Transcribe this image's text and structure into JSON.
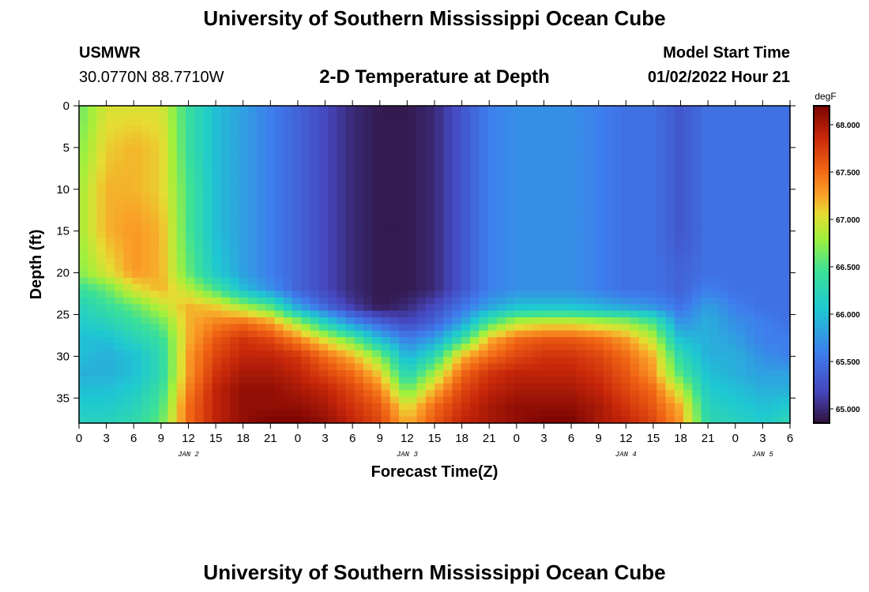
{
  "header": {
    "title": "University of Southern Mississippi Ocean Cube",
    "station": "USMWR",
    "coords": "30.0770N  88.7710W",
    "subtitle": "2-D Temperature at Depth",
    "model_label": "Model Start Time",
    "model_time": "01/02/2022 Hour 21"
  },
  "footer": {
    "title": "University of Southern Mississippi Ocean Cube"
  },
  "chart_data": {
    "type": "heatmap",
    "title": "2-D Temperature at Depth",
    "xlabel": "Forecast Time(Z)",
    "ylabel": "Depth (ft)",
    "x_tick_labels": [
      "0",
      "3",
      "6",
      "9",
      "12",
      "15",
      "18",
      "21",
      "0",
      "3",
      "6",
      "9",
      "12",
      "15",
      "18",
      "21",
      "0",
      "3",
      "6",
      "9",
      "12",
      "15",
      "18",
      "21",
      "0",
      "3",
      "6"
    ],
    "date_labels": [
      {
        "label": "JAN 2",
        "hours": 12
      },
      {
        "label": "JAN 3",
        "hours": 36
      },
      {
        "label": "JAN 4",
        "hours": 60
      },
      {
        "label": "JAN 5",
        "hours": 75
      }
    ],
    "xlim_hours": [
      0,
      78
    ],
    "y_ticks": [
      0,
      5,
      10,
      15,
      20,
      25,
      30,
      35
    ],
    "ylim": [
      0,
      38
    ],
    "y_inverted": true,
    "colorbar": {
      "unit": "degF",
      "min": 64.85,
      "max": 68.2,
      "tick_values": [
        65.0,
        65.5,
        66.0,
        66.5,
        67.0,
        67.5,
        68.0
      ],
      "tick_labels": [
        "65.000",
        "65.500",
        "66.000",
        "66.500",
        "67.000",
        "67.500",
        "68.000"
      ]
    },
    "time_hours": [
      0,
      3,
      6,
      9,
      12,
      15,
      18,
      21,
      24,
      27,
      30,
      33,
      36,
      39,
      42,
      45,
      48,
      51,
      54,
      57,
      60,
      63,
      66,
      69,
      72,
      75,
      78
    ],
    "depth_ft": [
      0,
      5,
      10,
      15,
      20,
      22,
      24,
      26,
      28,
      30,
      32,
      34,
      36,
      38
    ],
    "values": [
      [
        66.6,
        67.0,
        67.0,
        67.0,
        66.4,
        66.0,
        65.8,
        65.6,
        65.4,
        65.2,
        65.0,
        64.9,
        64.9,
        65.0,
        65.3,
        65.6,
        65.7,
        65.7,
        65.7,
        65.6,
        65.5,
        65.5,
        65.3,
        65.5,
        65.5,
        65.5,
        65.5
      ],
      [
        66.7,
        67.1,
        67.2,
        67.1,
        66.4,
        66.0,
        65.8,
        65.6,
        65.4,
        65.2,
        65.0,
        64.9,
        64.9,
        65.0,
        65.3,
        65.6,
        65.7,
        65.7,
        65.7,
        65.6,
        65.5,
        65.5,
        65.3,
        65.5,
        65.5,
        65.5,
        65.5
      ],
      [
        66.8,
        67.2,
        67.2,
        67.1,
        66.5,
        66.0,
        65.8,
        65.6,
        65.4,
        65.2,
        65.0,
        64.9,
        64.9,
        65.0,
        65.3,
        65.6,
        65.7,
        65.7,
        65.7,
        65.6,
        65.5,
        65.5,
        65.3,
        65.5,
        65.5,
        65.5,
        65.5
      ],
      [
        66.8,
        67.2,
        67.3,
        67.2,
        66.5,
        66.0,
        65.8,
        65.6,
        65.4,
        65.2,
        65.0,
        64.9,
        64.9,
        65.0,
        65.3,
        65.6,
        65.7,
        65.7,
        65.7,
        65.6,
        65.5,
        65.5,
        65.3,
        65.5,
        65.5,
        65.5,
        65.5
      ],
      [
        66.7,
        67.0,
        67.3,
        67.2,
        66.6,
        66.1,
        65.8,
        65.6,
        65.4,
        65.2,
        65.0,
        64.9,
        64.9,
        65.0,
        65.3,
        65.6,
        65.7,
        65.7,
        65.7,
        65.6,
        65.5,
        65.5,
        65.4,
        65.5,
        65.5,
        65.5,
        65.5
      ],
      [
        66.4,
        66.6,
        67.0,
        67.2,
        66.9,
        66.5,
        66.0,
        65.7,
        65.4,
        65.2,
        65.0,
        64.9,
        64.9,
        65.0,
        65.3,
        65.6,
        65.7,
        65.7,
        65.7,
        65.6,
        65.5,
        65.5,
        65.4,
        65.6,
        65.5,
        65.5,
        65.5
      ],
      [
        66.2,
        66.4,
        66.6,
        66.9,
        67.2,
        67.1,
        66.8,
        66.5,
        65.8,
        65.4,
        65.1,
        64.9,
        65.0,
        65.2,
        65.5,
        65.8,
        66.0,
        66.0,
        66.0,
        65.9,
        65.8,
        65.7,
        65.5,
        65.8,
        65.6,
        65.5,
        65.5
      ],
      [
        66.1,
        66.2,
        66.4,
        66.6,
        67.2,
        67.4,
        67.5,
        67.3,
        66.8,
        66.2,
        65.7,
        65.4,
        65.2,
        65.4,
        65.8,
        66.5,
        66.9,
        67.0,
        67.0,
        66.9,
        66.8,
        66.5,
        65.7,
        65.9,
        65.7,
        65.6,
        65.5
      ],
      [
        66.0,
        66.0,
        66.2,
        66.4,
        67.2,
        67.6,
        67.8,
        67.7,
        67.4,
        67.0,
        66.6,
        66.0,
        65.6,
        65.8,
        66.4,
        67.2,
        67.5,
        67.6,
        67.6,
        67.5,
        67.3,
        66.9,
        66.0,
        65.9,
        65.8,
        65.6,
        65.6
      ],
      [
        66.0,
        65.9,
        66.0,
        66.3,
        67.3,
        67.7,
        67.9,
        67.9,
        67.8,
        67.5,
        67.2,
        66.7,
        65.9,
        66.3,
        67.2,
        67.5,
        67.7,
        67.8,
        67.8,
        67.7,
        67.5,
        67.2,
        66.3,
        65.9,
        65.9,
        65.7,
        65.6
      ],
      [
        65.9,
        65.9,
        66.0,
        66.3,
        67.3,
        67.8,
        68.0,
        68.0,
        67.9,
        67.7,
        67.5,
        67.1,
        66.2,
        66.8,
        67.5,
        67.8,
        67.9,
        67.9,
        67.9,
        67.8,
        67.6,
        67.3,
        66.5,
        66.0,
        65.9,
        65.8,
        65.8
      ],
      [
        66.0,
        66.0,
        66.1,
        66.4,
        67.4,
        67.9,
        68.1,
        68.1,
        68.0,
        67.9,
        67.7,
        67.4,
        66.6,
        67.2,
        67.7,
        67.9,
        68.0,
        68.0,
        68.0,
        67.9,
        67.7,
        67.5,
        66.9,
        66.1,
        66.0,
        65.9,
        65.9
      ],
      [
        66.1,
        66.1,
        66.2,
        66.5,
        67.5,
        67.9,
        68.1,
        68.1,
        68.1,
        68.0,
        67.8,
        67.6,
        67.0,
        67.5,
        67.8,
        68.0,
        68.1,
        68.1,
        68.1,
        68.0,
        67.8,
        67.6,
        67.2,
        66.2,
        66.1,
        66.0,
        66.1
      ],
      [
        66.2,
        66.2,
        66.3,
        66.6,
        67.5,
        67.9,
        68.1,
        68.2,
        68.2,
        68.1,
        67.9,
        67.7,
        67.2,
        67.6,
        67.9,
        68.0,
        68.1,
        68.2,
        68.2,
        68.0,
        67.9,
        67.7,
        67.3,
        66.3,
        66.2,
        66.1,
        66.3
      ]
    ]
  }
}
